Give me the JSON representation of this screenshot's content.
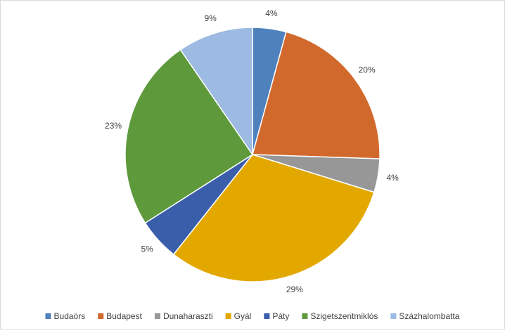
{
  "chart_data": {
    "type": "pie",
    "categories": [
      "Budaörs",
      "Budapest",
      "Dunaharaszti",
      "Gyál",
      "Páty",
      "Szigetszentmiklós",
      "Százhalombatta"
    ],
    "values": [
      4,
      20,
      4,
      29,
      5,
      23,
      9
    ],
    "value_labels": [
      "4%",
      "20%",
      "4%",
      "29%",
      "5%",
      "23%",
      "9%"
    ],
    "colors": [
      "#4f81bd",
      "#d2692c",
      "#979797",
      "#e2a800",
      "#3b5eab",
      "#5e9a3c",
      "#9cbae2"
    ],
    "legend": "bottom"
  }
}
